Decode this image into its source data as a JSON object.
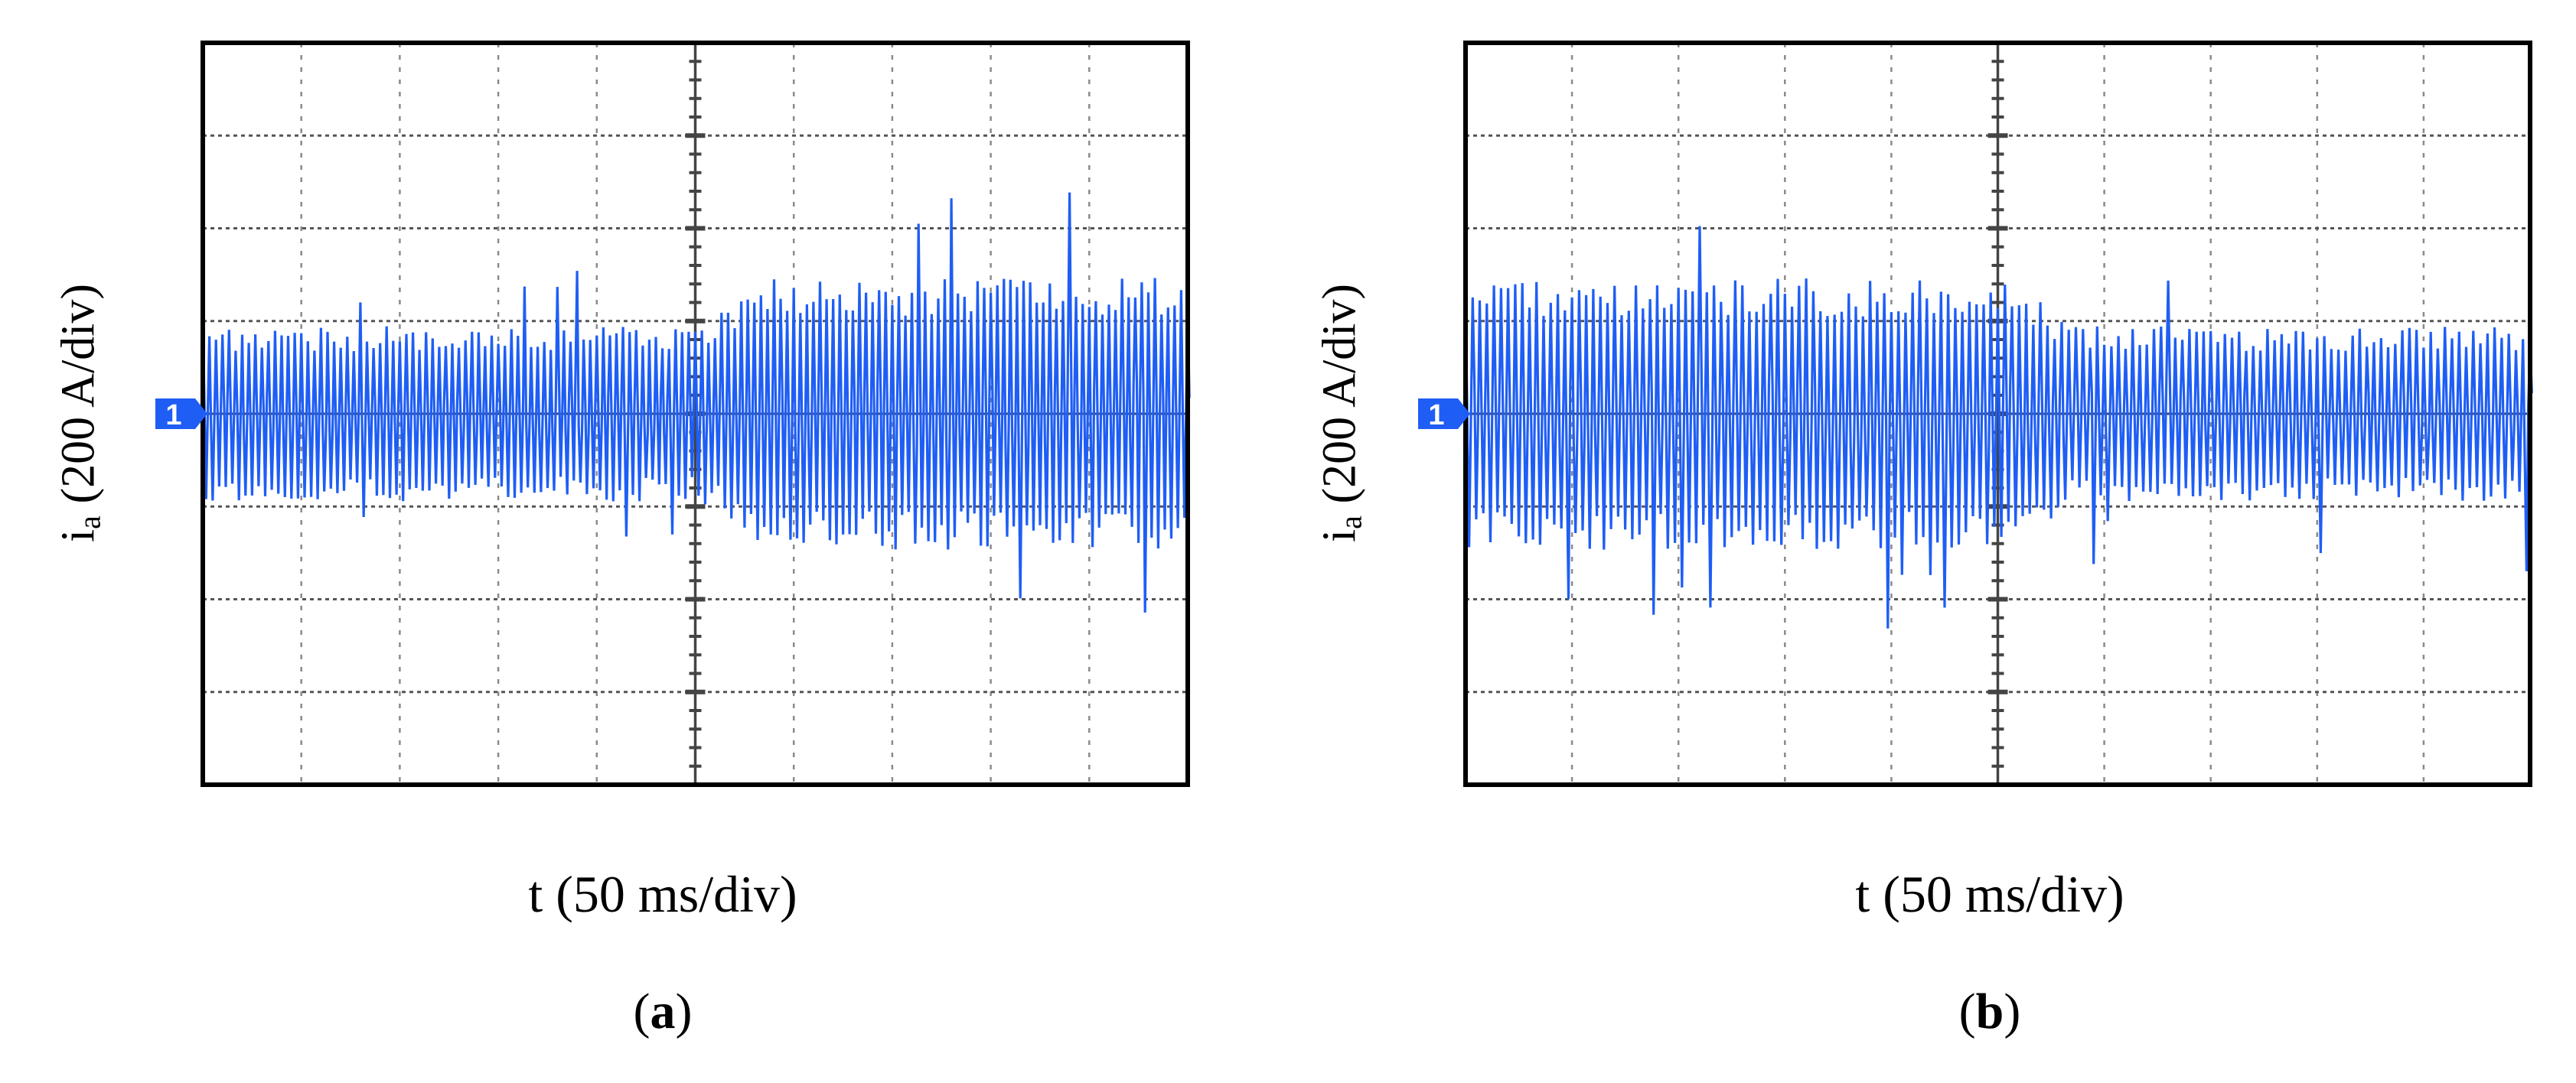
{
  "figure": {
    "panels": [
      {
        "label": "a",
        "ylabel_main": "i",
        "ylabel_sub": "a",
        "ylabel_rest": " (200 A/div)",
        "xlabel": "t (50 ms/div)",
        "channel_marker": "1"
      },
      {
        "label": "b",
        "ylabel_main": "i",
        "ylabel_sub": "a",
        "ylabel_rest": " (200 A/div)",
        "xlabel": "t (50 ms/div)",
        "channel_marker": "1"
      }
    ]
  },
  "colors": {
    "trace": "#1f5ef5",
    "marker": "#1f5ef5",
    "grid": "#555555",
    "frame": "#000000"
  },
  "chart_data": [
    {
      "type": "line",
      "panel": "a",
      "title": "",
      "xlabel": "t (50 ms/div)",
      "ylabel": "ia (200 A/div)",
      "x_divisions": 10,
      "y_divisions": 8,
      "xlim": [
        0,
        10
      ],
      "ylim": [
        -4,
        4
      ],
      "grid": true,
      "series": [
        {
          "segment": "before step",
          "x_range_div": [
            0,
            5.4
          ],
          "approx_peak_to_peak_div": [
            -0.9,
            0.9
          ],
          "amplitude_A": 180
        },
        {
          "segment": "after step",
          "x_range_div": [
            5.4,
            10
          ],
          "approx_peak_to_peak_div": [
            -1.4,
            1.4
          ],
          "amplitude_A": 280
        }
      ]
    },
    {
      "type": "line",
      "panel": "b",
      "title": "",
      "xlabel": "t (50 ms/div)",
      "ylabel": "ia (200 A/div)",
      "x_divisions": 10,
      "y_divisions": 8,
      "xlim": [
        0,
        10
      ],
      "ylim": [
        -4,
        4
      ],
      "grid": true,
      "series": [
        {
          "segment": "before step",
          "x_range_div": [
            0,
            5.4
          ],
          "approx_peak_to_peak_div": [
            -1.4,
            1.4
          ],
          "amplitude_A": 280
        },
        {
          "segment": "after step",
          "x_range_div": [
            5.4,
            10
          ],
          "approx_peak_to_peak_div": [
            -0.9,
            0.9
          ],
          "amplitude_A": 180
        }
      ]
    }
  ]
}
